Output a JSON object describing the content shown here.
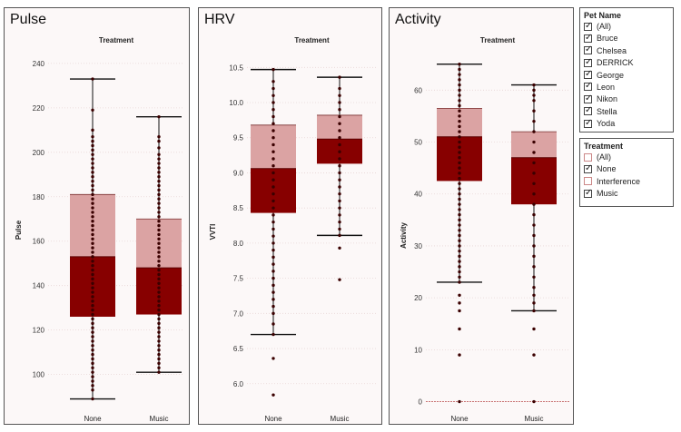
{
  "chart_data": [
    {
      "type": "box",
      "title": "Pulse",
      "header": "Treatment",
      "ylabel": "Pulse",
      "ylim": [
        88,
        242
      ],
      "yticks": [
        100,
        120,
        140,
        160,
        180,
        200,
        220,
        240
      ],
      "categories": [
        "None",
        "Music"
      ],
      "boxes": [
        {
          "min": 89,
          "q1": 126,
          "median": 153,
          "q3": 181,
          "max": 233,
          "points": [
            89,
            93,
            95,
            97,
            99,
            101,
            103,
            105,
            107,
            109,
            111,
            113,
            115,
            117,
            119,
            121,
            123,
            125,
            127,
            129,
            131,
            133,
            135,
            137,
            139,
            141,
            143,
            145,
            147,
            149,
            151,
            153,
            155,
            157,
            159,
            161,
            163,
            165,
            167,
            169,
            171,
            173,
            175,
            177,
            179,
            181,
            183,
            185,
            187,
            189,
            191,
            193,
            195,
            197,
            199,
            201,
            203,
            205,
            207,
            210,
            219,
            233
          ]
        },
        {
          "min": 101,
          "q1": 127,
          "median": 148,
          "q3": 170,
          "max": 216,
          "points": [
            101,
            103,
            105,
            107,
            109,
            111,
            113,
            115,
            117,
            119,
            121,
            123,
            125,
            127,
            129,
            131,
            133,
            135,
            137,
            139,
            141,
            143,
            145,
            147,
            149,
            151,
            153,
            155,
            157,
            159,
            161,
            163,
            165,
            167,
            169,
            171,
            173,
            175,
            177,
            179,
            181,
            183,
            185,
            187,
            189,
            191,
            193,
            195,
            197,
            199,
            202,
            205,
            207,
            216
          ]
        }
      ]
    },
    {
      "type": "box",
      "title": "HRV",
      "header": "Treatment",
      "ylabel": "VVTI",
      "ylim": [
        5.7,
        10.62
      ],
      "yticks": [
        "6.0",
        "6.5",
        "7.0",
        "7.5",
        "8.0",
        "8.5",
        "9.0",
        "9.5",
        "10.0",
        "10.5"
      ],
      "categories": [
        "None",
        "Music"
      ],
      "boxes": [
        {
          "min": 6.7,
          "q1": 8.43,
          "median": 9.06,
          "q3": 9.68,
          "max": 10.47,
          "points": [
            5.84,
            6.36,
            6.7,
            6.85,
            7.0,
            7.1,
            7.2,
            7.3,
            7.4,
            7.5,
            7.6,
            7.7,
            7.8,
            7.9,
            8.0,
            8.1,
            8.2,
            8.3,
            8.4,
            8.5,
            8.6,
            8.7,
            8.8,
            8.9,
            9.0,
            9.1,
            9.2,
            9.3,
            9.4,
            9.5,
            9.6,
            9.7,
            9.8,
            9.9,
            10.0,
            10.1,
            10.2,
            10.3,
            10.47
          ]
        },
        {
          "min": 8.11,
          "q1": 9.13,
          "median": 9.48,
          "q3": 9.82,
          "max": 10.36,
          "points": [
            7.48,
            7.93,
            8.11,
            8.2,
            8.3,
            8.4,
            8.5,
            8.6,
            8.7,
            8.8,
            8.9,
            9.0,
            9.1,
            9.2,
            9.3,
            9.4,
            9.5,
            9.6,
            9.7,
            9.8,
            9.9,
            10.0,
            10.1,
            10.2,
            10.36
          ]
        }
      ]
    },
    {
      "type": "box",
      "title": "Activity",
      "header": "Treatment",
      "ylabel": "Activity",
      "ylim": [
        -2,
        66
      ],
      "yticks": [
        0,
        10,
        20,
        30,
        40,
        50,
        60
      ],
      "categories": [
        "None",
        "Music"
      ],
      "boxes": [
        {
          "min": 23,
          "q1": 42.5,
          "median": 51,
          "q3": 56.5,
          "max": 65,
          "points": [
            0,
            9,
            14,
            17.5,
            19,
            20.5,
            23,
            24,
            25,
            26,
            27,
            28,
            29,
            30,
            31,
            32,
            33,
            34,
            35,
            36,
            37,
            38,
            39,
            40,
            41,
            42,
            43,
            44,
            45,
            46,
            47,
            48,
            49,
            50,
            51,
            52,
            53,
            54,
            55,
            56,
            57,
            58,
            59,
            60,
            61,
            62,
            63,
            64,
            65
          ]
        },
        {
          "min": 17.5,
          "q1": 38,
          "median": 47,
          "q3": 52,
          "max": 61,
          "points": [
            0,
            9,
            14,
            17.5,
            19,
            20.5,
            22,
            24,
            26,
            28,
            30,
            32,
            34,
            36,
            38,
            40,
            42,
            44,
            46,
            48,
            50,
            52,
            54,
            56,
            58,
            59,
            60,
            61
          ]
        }
      ]
    }
  ],
  "filters": {
    "pet": {
      "title": "Pet Name",
      "items": [
        {
          "label": "(All)",
          "checked": true
        },
        {
          "label": "Bruce",
          "checked": true
        },
        {
          "label": "Chelsea",
          "checked": true
        },
        {
          "label": "DERRICK",
          "checked": true
        },
        {
          "label": "George",
          "checked": true
        },
        {
          "label": "Leon",
          "checked": true
        },
        {
          "label": "Nikon",
          "checked": true
        },
        {
          "label": "Stella",
          "checked": true
        },
        {
          "label": "Yoda",
          "checked": true
        }
      ]
    },
    "treatment": {
      "title": "Treatment",
      "items": [
        {
          "label": "(All)",
          "checked": false
        },
        {
          "label": "None",
          "checked": true
        },
        {
          "label": "Interference",
          "checked": false
        },
        {
          "label": "Music",
          "checked": true
        }
      ]
    }
  },
  "colors": {
    "box_upper": "#dba3a3",
    "box_lower": "#870000",
    "points": "#3a0000",
    "whisker": "#111111",
    "grid": "#e8d6d6",
    "zero_line": "#c06060"
  }
}
